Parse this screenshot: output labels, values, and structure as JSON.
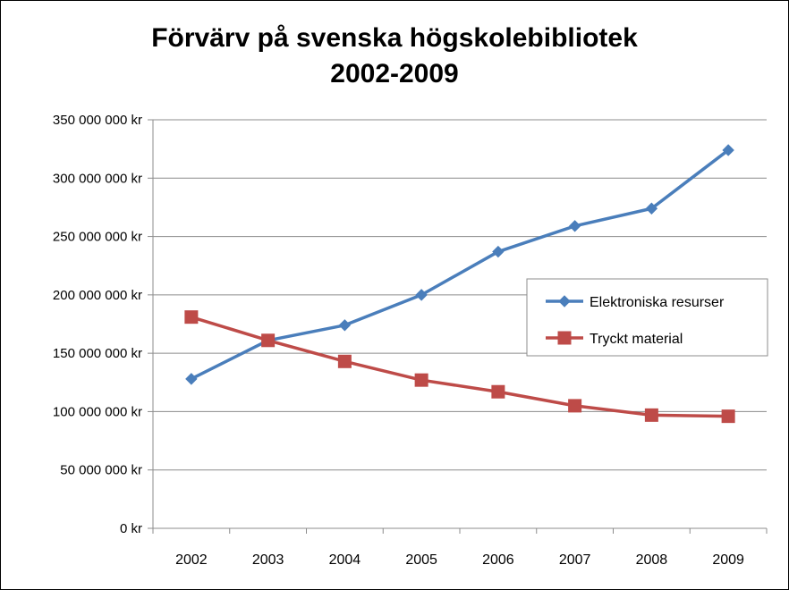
{
  "chart_data": {
    "type": "line",
    "title_line1": "Förvärv på svenska högskolebibliotek",
    "title_line2": "2002-2009",
    "xlabel": "",
    "ylabel": "",
    "categories": [
      "2002",
      "2003",
      "2004",
      "2005",
      "2006",
      "2007",
      "2008",
      "2009"
    ],
    "ylim": [
      0,
      350000000
    ],
    "yticks": [
      0,
      50000000,
      100000000,
      150000000,
      200000000,
      250000000,
      300000000,
      350000000
    ],
    "ytick_labels": [
      "0 kr",
      "50 000 000 kr",
      "100 000 000 kr",
      "150 000 000 kr",
      "200 000 000 kr",
      "250 000 000 kr",
      "300 000 000 kr",
      "350 000 000 kr"
    ],
    "grid": true,
    "legend_position": "right",
    "series": [
      {
        "name": "Elektroniska resurser",
        "color": "#4a7ebb",
        "marker": "diamond",
        "values": [
          128000000,
          161000000,
          174000000,
          200000000,
          237000000,
          259000000,
          274000000,
          324000000
        ]
      },
      {
        "name": "Tryckt material",
        "color": "#be4b48",
        "marker": "square",
        "values": [
          181000000,
          161000000,
          143000000,
          127000000,
          117000000,
          105000000,
          97000000,
          96000000
        ]
      }
    ]
  }
}
